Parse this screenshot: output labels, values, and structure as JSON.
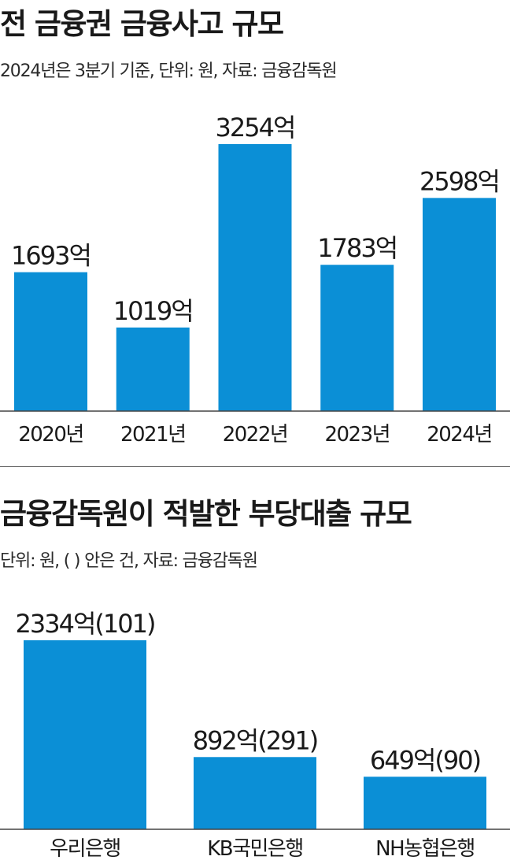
{
  "chart_data": [
    {
      "type": "bar",
      "title": "전 금융권 금융사고 규모",
      "subtitle": "2024년은 3분기 기준, 단위: 원, 자료: 금융감독원",
      "categories": [
        "2020년",
        "2021년",
        "2022년",
        "2023년",
        "2024년"
      ],
      "values": [
        1693,
        1019,
        3254,
        1783,
        2598
      ],
      "data_labels": [
        "1693억",
        "1019억",
        "3254억",
        "1783억",
        "2598억"
      ],
      "ylim": [
        0,
        3254
      ],
      "unit": "억",
      "grid": false,
      "color": "#0b8fd6"
    },
    {
      "type": "bar",
      "title": "금융감독원이 적발한 부당대출 규모",
      "subtitle": "단위: 원, ( ) 안은 건, 자료: 금융감독원",
      "categories": [
        "우리은행",
        "KB국민은행",
        "NH농협은행"
      ],
      "values": [
        2334,
        892,
        649
      ],
      "counts": [
        101,
        291,
        90
      ],
      "data_labels": [
        "2334억(101)",
        "892억(291)",
        "649억(90)"
      ],
      "ylim": [
        0,
        2334
      ],
      "unit": "억",
      "grid": false,
      "color": "#0b8fd6"
    }
  ]
}
